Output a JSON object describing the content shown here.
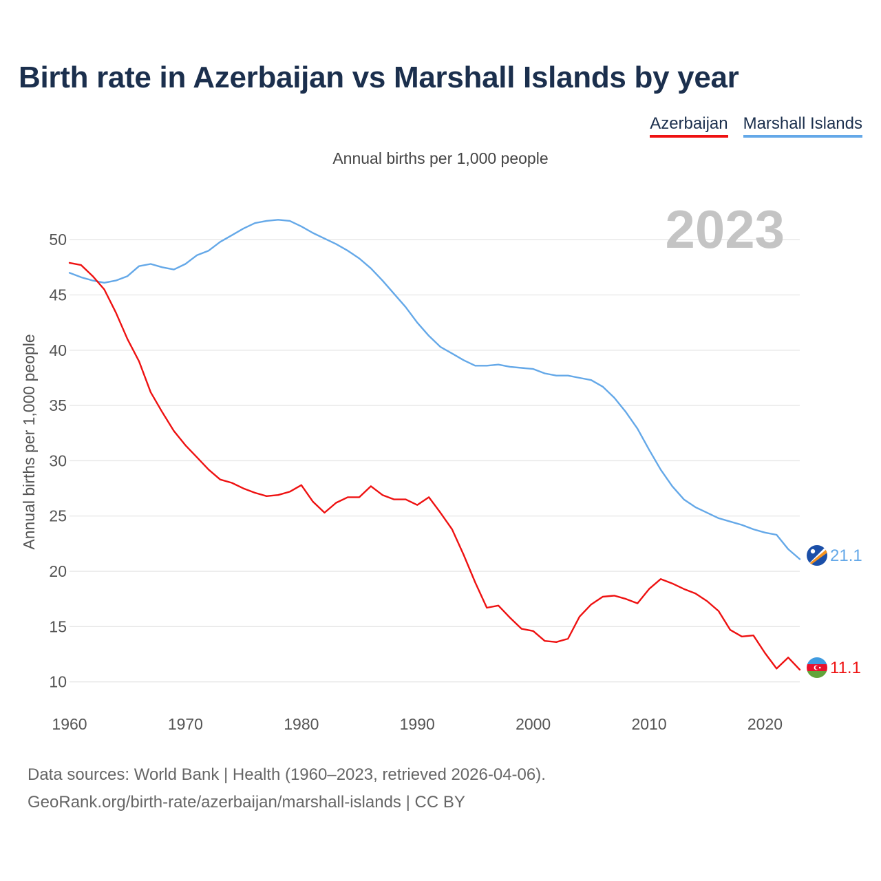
{
  "title": "Birth rate in Azerbaijan vs Marshall Islands by year",
  "subtitle": "Annual births per 1,000 people",
  "legend": [
    "Azerbaijan",
    "Marshall Islands"
  ],
  "year_label": "2023",
  "footer": {
    "line1": "Data sources: World Bank | Health (1960–2023, retrieved 2026-04-06).",
    "line2": "GeoRank.org/birth-rate/azerbaijan/marshall-islands | CC BY"
  },
  "colors": {
    "azerbaijan": "#ee1111",
    "marshall_islands": "#64a8e8",
    "title": "#1b2f4d",
    "grid": "#e6e6e6",
    "year_watermark": "#c4c4c4"
  },
  "chart_data": {
    "type": "line",
    "title": "Birth rate in Azerbaijan vs Marshall Islands by year",
    "xlabel": "",
    "ylabel": "Annual births per 1,000 people",
    "xlim": [
      1960,
      2023
    ],
    "ylim": [
      7.8,
      53
    ],
    "xticks": [
      1960,
      1970,
      1980,
      1990,
      2000,
      2010,
      2020
    ],
    "yticks": [
      10,
      15,
      20,
      25,
      30,
      35,
      40,
      45,
      50
    ],
    "grid": true,
    "legend_position": "top-right",
    "x": [
      1960,
      1961,
      1962,
      1963,
      1964,
      1965,
      1966,
      1967,
      1968,
      1969,
      1970,
      1971,
      1972,
      1973,
      1974,
      1975,
      1976,
      1977,
      1978,
      1979,
      1980,
      1981,
      1982,
      1983,
      1984,
      1985,
      1986,
      1987,
      1988,
      1989,
      1990,
      1991,
      1992,
      1993,
      1994,
      1995,
      1996,
      1997,
      1998,
      1999,
      2000,
      2001,
      2002,
      2003,
      2004,
      2005,
      2006,
      2007,
      2008,
      2009,
      2010,
      2011,
      2012,
      2013,
      2014,
      2015,
      2016,
      2017,
      2018,
      2019,
      2020,
      2021,
      2022,
      2023
    ],
    "series": [
      {
        "name": "Azerbaijan",
        "end_label": "11.1",
        "values": [
          47.9,
          47.7,
          46.7,
          45.5,
          43.4,
          41.0,
          39.0,
          36.2,
          34.4,
          32.7,
          31.4,
          30.3,
          29.2,
          28.3,
          28.0,
          27.5,
          27.1,
          26.8,
          26.9,
          27.2,
          27.8,
          26.3,
          25.3,
          26.2,
          26.7,
          26.7,
          27.7,
          26.9,
          26.5,
          26.5,
          26.0,
          26.7,
          25.3,
          23.8,
          21.5,
          19.0,
          16.7,
          16.9,
          15.8,
          14.8,
          14.6,
          13.7,
          13.6,
          13.9,
          15.9,
          17.0,
          17.7,
          17.8,
          17.5,
          17.1,
          18.4,
          19.3,
          18.9,
          18.4,
          18.0,
          17.3,
          16.4,
          14.7,
          14.1,
          14.2,
          12.6,
          11.2,
          12.2,
          11.1
        ]
      },
      {
        "name": "Marshall Islands",
        "end_label": "21.1",
        "values": [
          47.0,
          46.6,
          46.3,
          46.1,
          46.3,
          46.7,
          47.6,
          47.8,
          47.5,
          47.3,
          47.8,
          48.6,
          49.0,
          49.8,
          50.4,
          51.0,
          51.5,
          51.7,
          51.8,
          51.7,
          51.2,
          50.6,
          50.1,
          49.6,
          49.0,
          48.3,
          47.4,
          46.3,
          45.1,
          43.9,
          42.5,
          41.3,
          40.3,
          39.7,
          39.1,
          38.6,
          38.6,
          38.7,
          38.5,
          38.4,
          38.3,
          37.9,
          37.7,
          37.7,
          37.5,
          37.3,
          36.7,
          35.7,
          34.4,
          32.9,
          31.0,
          29.2,
          27.7,
          26.5,
          25.8,
          25.3,
          24.8,
          24.5,
          24.2,
          23.8,
          23.5,
          23.3,
          22.0,
          21.1
        ]
      }
    ]
  }
}
